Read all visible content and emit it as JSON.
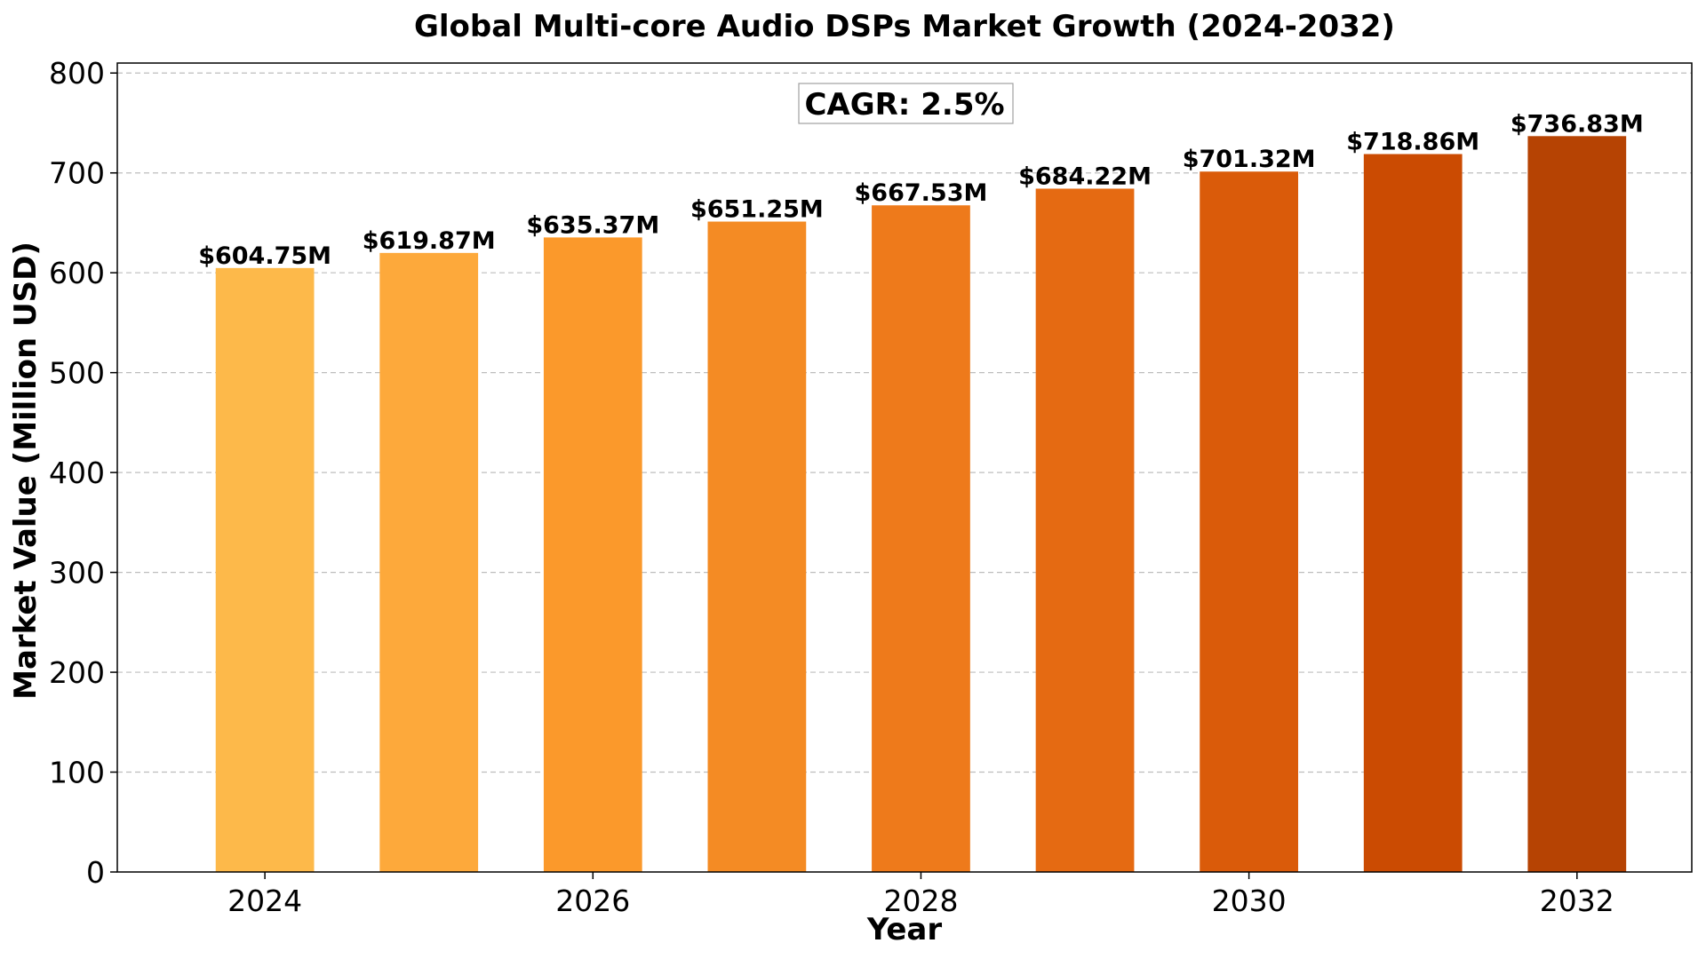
{
  "chart_data": {
    "type": "bar",
    "title": "Global Multi-core Audio DSPs Market Growth (2024-2032)",
    "xlabel": "Year",
    "ylabel": "Market Value (Million USD)",
    "categories": [
      2024,
      2025,
      2026,
      2027,
      2028,
      2029,
      2030,
      2031,
      2032
    ],
    "values": [
      604.75,
      619.87,
      635.37,
      651.25,
      667.53,
      684.22,
      701.32,
      718.86,
      736.83
    ],
    "data_labels": [
      "$604.75M",
      "$619.87M",
      "$635.37M",
      "$651.25M",
      "$667.53M",
      "$684.22M",
      "$701.32M",
      "$718.86M",
      "$736.83M"
    ],
    "bar_colors": [
      "#fdb94a",
      "#fda93b",
      "#fb992b",
      "#f48b24",
      "#ee7a1b",
      "#e56a12",
      "#da5b0a",
      "#cb4b02",
      "#b64303"
    ],
    "xlim": [
      2023.1,
      2032.7
    ],
    "xticks": [
      2024,
      2026,
      2028,
      2030,
      2032
    ],
    "ylim": [
      0,
      810
    ],
    "yticks": [
      0,
      100,
      200,
      300,
      400,
      500,
      600,
      700,
      800
    ],
    "grid": "y-dashed",
    "annotation": "CAGR: 2.5%"
  }
}
